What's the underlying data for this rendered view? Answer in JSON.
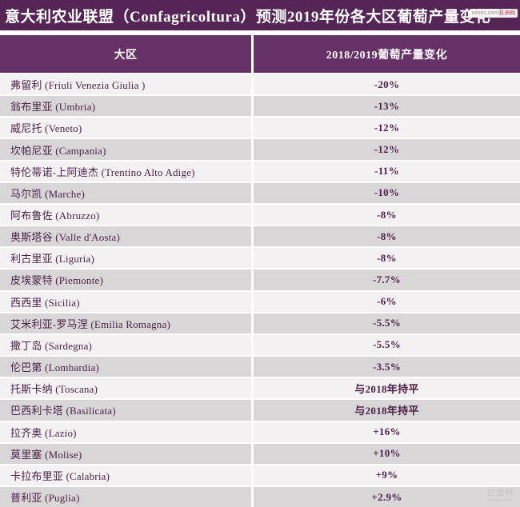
{
  "title": "意大利农业联盟（Confagricoltura）预测2019年份各大区葡萄产量变化",
  "watermark_top": {
    "prefix": "wines.com",
    "suffix": "亚洲网"
  },
  "watermark_bottom": {
    "line1": "红酒网",
    "line2": "wines.com"
  },
  "colors": {
    "title_bar": "#552655",
    "header_bar": "#653166",
    "row_light": "#f3f1f2",
    "row_gray": "#d9d6d8",
    "cell_text": "#4c2348",
    "header_text": "#ffffff"
  },
  "chart_data": {
    "type": "table",
    "title": "意大利农业联盟（Confagricoltura）预测2019年份各大区葡萄产量变化",
    "columns": [
      "大区",
      "2018/2019葡萄产量变化"
    ],
    "rows": [
      {
        "label": "弗留利 (Friuli Venezia Giulia )",
        "region_cn": "弗留利",
        "region_en": "Friuli Venezia Giulia",
        "change": "-20%"
      },
      {
        "label": "翁布里亚 (Umbria)",
        "region_cn": "翁布里亚",
        "region_en": "Umbria",
        "change": "-13%"
      },
      {
        "label": "威尼托 (Veneto)",
        "region_cn": "威尼托",
        "region_en": "Veneto",
        "change": "-12%"
      },
      {
        "label": "坎帕尼亚 (Campania)",
        "region_cn": "坎帕尼亚",
        "region_en": "Campania",
        "change": "-12%"
      },
      {
        "label": "特伦蒂诺-上阿迪杰 (Trentino Alto Adige)",
        "region_cn": "特伦蒂诺-上阿迪杰",
        "region_en": "Trentino Alto Adige",
        "change": "-11%"
      },
      {
        "label": "马尔凯 (Marche)",
        "region_cn": "马尔凯",
        "region_en": "Marche",
        "change": "-10%"
      },
      {
        "label": "阿布鲁佐 (Abruzzo)",
        "region_cn": "阿布鲁佐",
        "region_en": "Abruzzo",
        "change": "-8%"
      },
      {
        "label": "奥斯塔谷 (Valle d'Aosta)",
        "region_cn": "奥斯塔谷",
        "region_en": "Valle d'Aosta",
        "change": "-8%"
      },
      {
        "label": "利古里亚 (Liguria)",
        "region_cn": "利古里亚",
        "region_en": "Liguria",
        "change": "-8%"
      },
      {
        "label": "皮埃蒙特 (Piemonte)",
        "region_cn": "皮埃蒙特",
        "region_en": "Piemonte",
        "change": "-7.7%"
      },
      {
        "label": "西西里 (Sicilia)",
        "region_cn": "西西里",
        "region_en": "Sicilia",
        "change": "-6%"
      },
      {
        "label": "艾米利亚-罗马涅 (Emilia Romagna)",
        "region_cn": "艾米利亚-罗马涅",
        "region_en": "Emilia Romagna",
        "change": "-5.5%"
      },
      {
        "label": "撒丁岛 (Sardegna)",
        "region_cn": "撒丁岛",
        "region_en": "Sardegna",
        "change": "-5.5%"
      },
      {
        "label": "伦巴第 (Lombardia)",
        "region_cn": "伦巴第",
        "region_en": "Lombardia",
        "change": "-3.5%"
      },
      {
        "label": "托斯卡纳 (Toscana)",
        "region_cn": "托斯卡纳",
        "region_en": "Toscana",
        "change": "与2018年持平"
      },
      {
        "label": "巴西利卡塔 (Basilicata)",
        "region_cn": "巴西利卡塔",
        "region_en": "Basilicata",
        "change": "与2018年持平"
      },
      {
        "label": "拉齐奥 (Lazio)",
        "region_cn": "拉齐奥",
        "region_en": "Lazio",
        "change": "+16%"
      },
      {
        "label": "莫里塞 (Molise)",
        "region_cn": "莫里塞",
        "region_en": "Molise",
        "change": "+10%"
      },
      {
        "label": "卡拉布里亚 (Calabria)",
        "region_cn": "卡拉布里亚",
        "region_en": "Calabria",
        "change": "+9%"
      },
      {
        "label": "普利亚 (Puglia)",
        "region_cn": "普利亚",
        "region_en": "Puglia",
        "change": "+2.9%"
      }
    ]
  }
}
